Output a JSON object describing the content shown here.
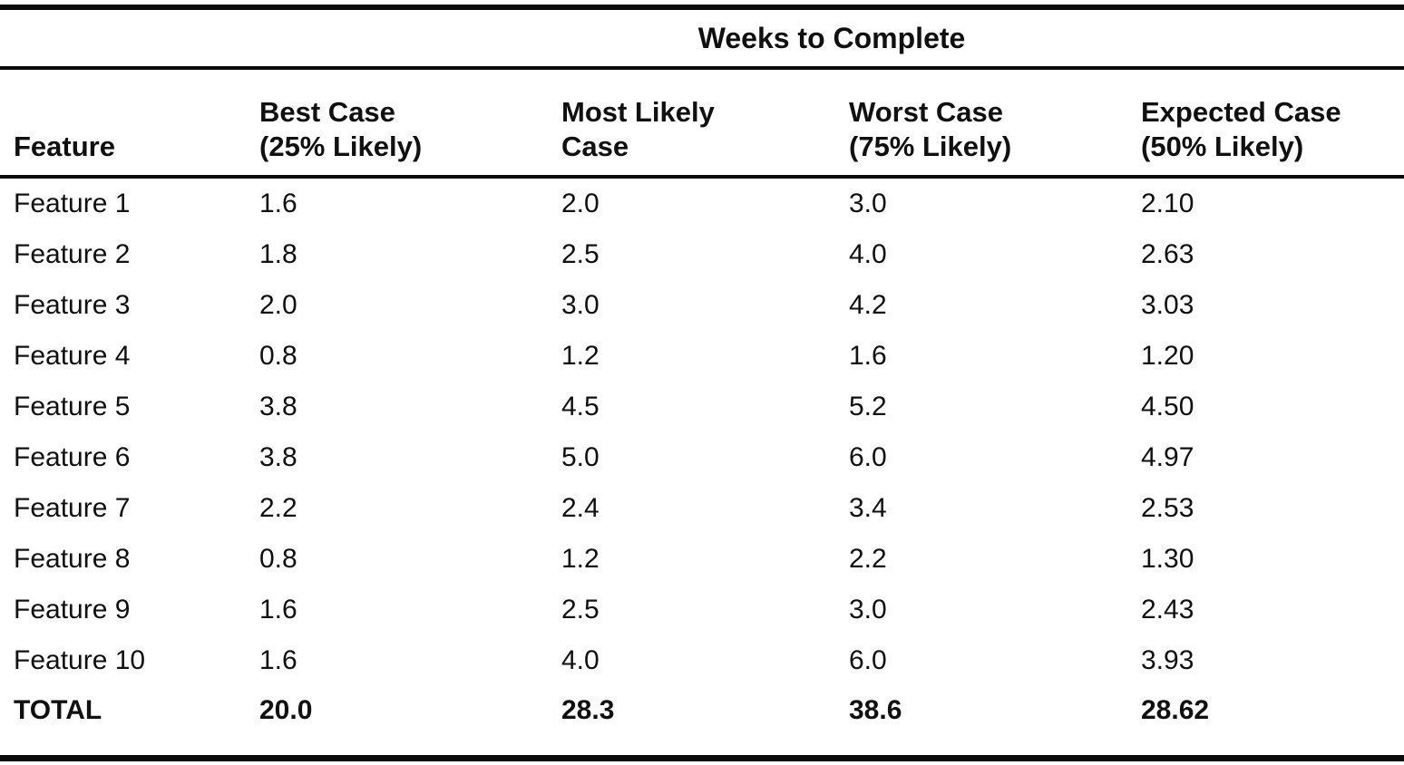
{
  "page": {
    "span_header": "Weeks to Complete",
    "columns": [
      {
        "line1": "Feature",
        "line2": ""
      },
      {
        "line1": "Best Case",
        "line2": "(25% Likely)"
      },
      {
        "line1": "Most Likely",
        "line2": "Case"
      },
      {
        "line1": "Worst Case",
        "line2": "(75% Likely)"
      },
      {
        "line1": "Expected Case",
        "line2": "(50% Likely)"
      }
    ],
    "rows": [
      {
        "feature": "Feature 1",
        "best": "1.6",
        "most": "2.0",
        "worst": "3.0",
        "expected": "2.10"
      },
      {
        "feature": "Feature 2",
        "best": "1.8",
        "most": "2.5",
        "worst": "4.0",
        "expected": "2.63"
      },
      {
        "feature": "Feature 3",
        "best": "2.0",
        "most": "3.0",
        "worst": "4.2",
        "expected": "3.03"
      },
      {
        "feature": "Feature 4",
        "best": "0.8",
        "most": "1.2",
        "worst": "1.6",
        "expected": "1.20"
      },
      {
        "feature": "Feature 5",
        "best": "3.8",
        "most": "4.5",
        "worst": "5.2",
        "expected": "4.50"
      },
      {
        "feature": "Feature 6",
        "best": "3.8",
        "most": "5.0",
        "worst": "6.0",
        "expected": "4.97"
      },
      {
        "feature": "Feature 7",
        "best": "2.2",
        "most": "2.4",
        "worst": "3.4",
        "expected": "2.53"
      },
      {
        "feature": "Feature 8",
        "best": "0.8",
        "most": "1.2",
        "worst": "2.2",
        "expected": "1.30"
      },
      {
        "feature": "Feature 9",
        "best": "1.6",
        "most": "2.5",
        "worst": "3.0",
        "expected": "2.43"
      },
      {
        "feature": "Feature 10",
        "best": "1.6",
        "most": "4.0",
        "worst": "6.0",
        "expected": "3.93"
      }
    ],
    "total_row": {
      "feature": "TOTAL",
      "best": "20.0",
      "most": "28.3",
      "worst": "38.6",
      "expected": "28.62"
    },
    "colors": {
      "text": "#101010",
      "rule": "#0a0a0a",
      "background": "#ffffff"
    }
  },
  "chart_data": {
    "type": "table",
    "title": "Weeks to Complete",
    "columns": [
      "Feature",
      "Best Case (25% Likely)",
      "Most Likely Case",
      "Worst Case (75% Likely)",
      "Expected Case (50% Likely)"
    ],
    "rows": [
      [
        "Feature 1",
        1.6,
        2.0,
        3.0,
        2.1
      ],
      [
        "Feature 2",
        1.8,
        2.5,
        4.0,
        2.63
      ],
      [
        "Feature 3",
        2.0,
        3.0,
        4.2,
        3.03
      ],
      [
        "Feature 4",
        0.8,
        1.2,
        1.6,
        1.2
      ],
      [
        "Feature 5",
        3.8,
        4.5,
        5.2,
        4.5
      ],
      [
        "Feature 6",
        3.8,
        5.0,
        6.0,
        4.97
      ],
      [
        "Feature 7",
        2.2,
        2.4,
        3.4,
        2.53
      ],
      [
        "Feature 8",
        0.8,
        1.2,
        2.2,
        1.3
      ],
      [
        "Feature 9",
        1.6,
        2.5,
        3.0,
        2.43
      ],
      [
        "Feature 10",
        1.6,
        4.0,
        6.0,
        3.93
      ]
    ],
    "total": [
      "TOTAL",
      20.0,
      28.3,
      38.6,
      28.62
    ]
  }
}
